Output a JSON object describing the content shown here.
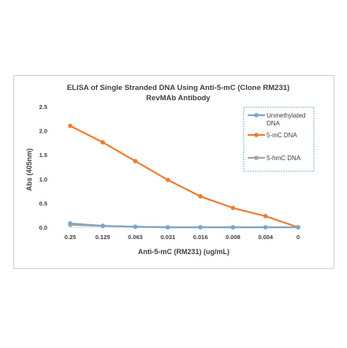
{
  "chart_data": {
    "type": "line",
    "title_line1": "ELISA of Single Stranded DNA Using Anti-5-mC (Clone RM231)",
    "title_line2": "RevMAb Antibody",
    "xlabel": "Anti-5-mC (RM231) (ug/mL)",
    "ylabel": "Abs (405nm)",
    "categories": [
      "0.25",
      "0.125",
      "0.063",
      "0.031",
      "0.016",
      "0.008",
      "0.004",
      "0"
    ],
    "ylim": [
      0,
      2.5
    ],
    "yticks": [
      "0.0",
      "0.5",
      "1.0",
      "1.5",
      "2.0",
      "2.5"
    ],
    "grid": false,
    "legend_position": "right",
    "series": [
      {
        "name": "Unmethylated DNA",
        "legend_line1": "Unmethylated",
        "legend_line2": "DNA",
        "color": "#7fa6c9",
        "values": [
          0.08,
          0.03,
          0.01,
          0.0,
          0.0,
          0.0,
          0.0,
          0.0
        ]
      },
      {
        "name": "5-mC DNA",
        "legend_line1": "5-mC DNA",
        "legend_line2": "",
        "color": "#ed7d31",
        "values": [
          2.1,
          1.76,
          1.37,
          0.98,
          0.64,
          0.4,
          0.23,
          0.0
        ]
      },
      {
        "name": "5-hmC DNA",
        "legend_line1": "5-hmC DNA",
        "legend_line2": "",
        "color": "#a5a5a5",
        "values": [
          0.05,
          0.03,
          0.01,
          0.0,
          0.0,
          0.0,
          0.0,
          0.0
        ]
      }
    ]
  }
}
